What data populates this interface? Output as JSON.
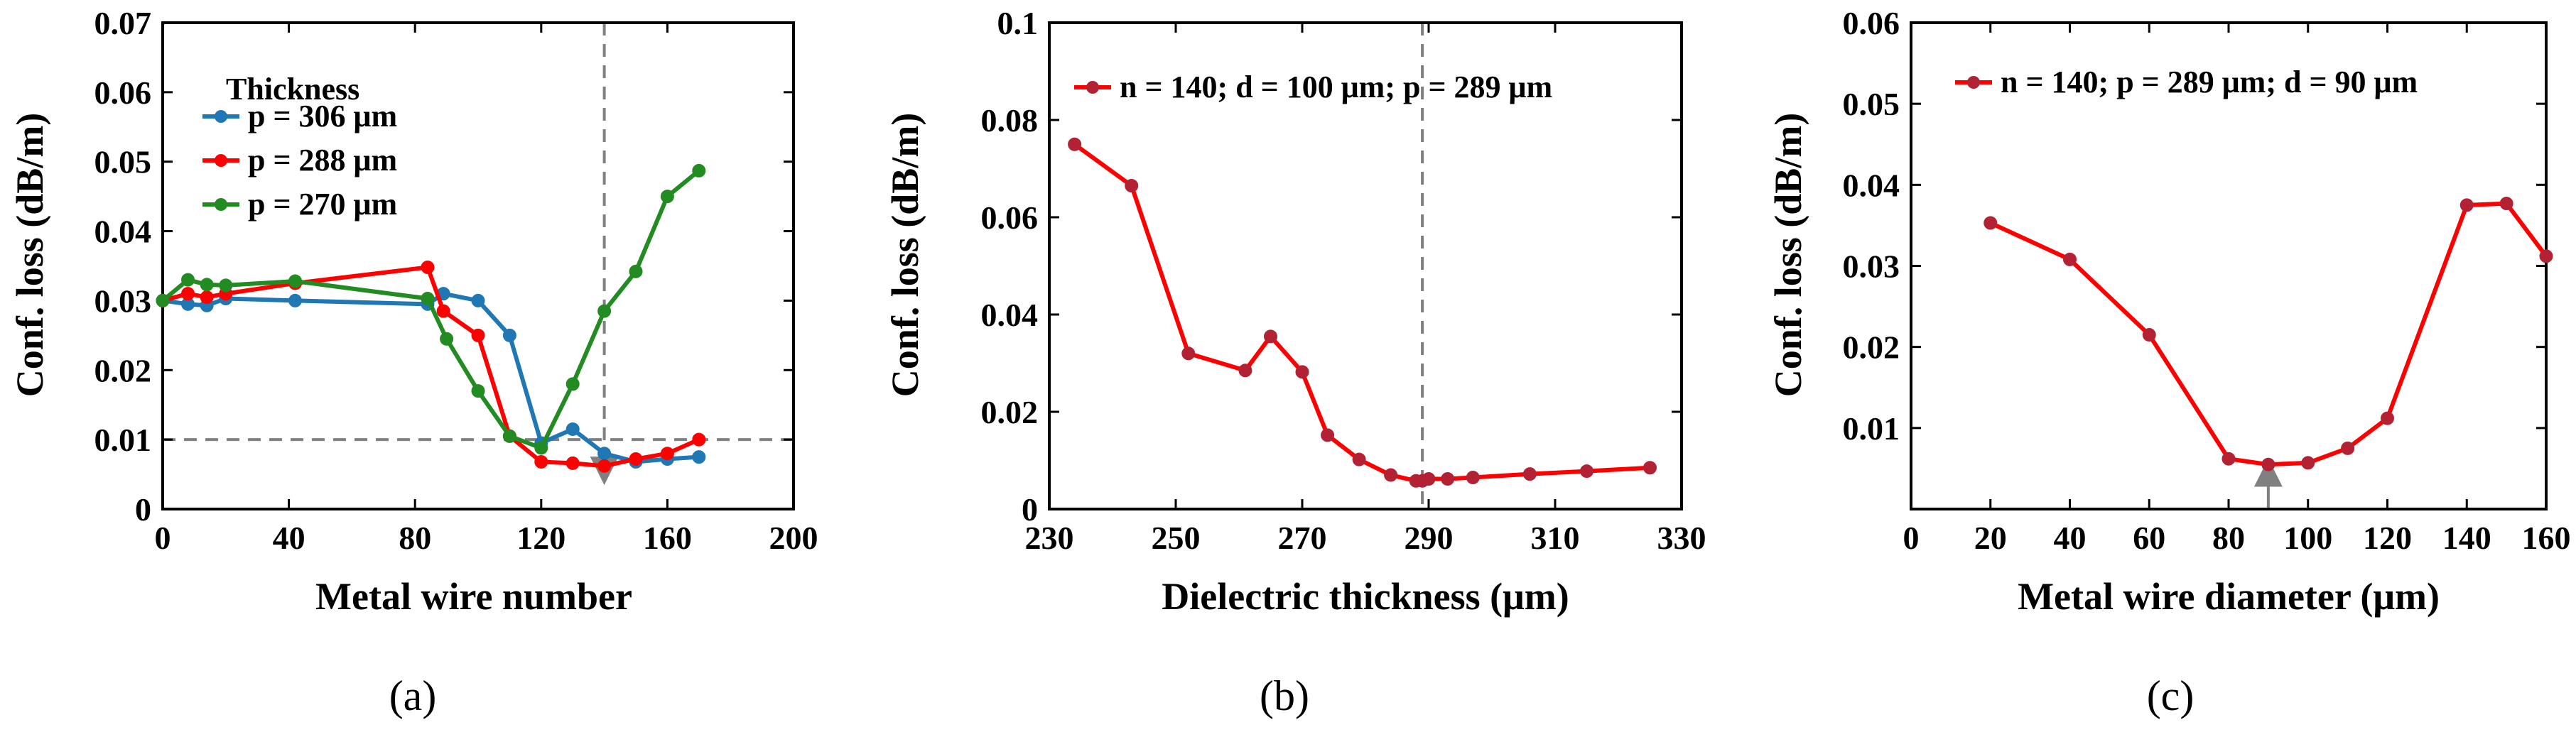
{
  "chart_data": [
    {
      "type": "line",
      "panel_label": "(a)",
      "xlabel": "Metal wire number",
      "ylabel": "Conf. loss (dB/m)",
      "xlim": [
        0,
        200
      ],
      "ylim": [
        0,
        0.07
      ],
      "xticks": [
        "0",
        "40",
        "80",
        "120",
        "160",
        "200"
      ],
      "yticks": [
        "0",
        "0.01",
        "0.02",
        "0.03",
        "0.04",
        "0.05",
        "0.06",
        "0.07"
      ],
      "legend_title": "Thickness",
      "legend_position": "top-left",
      "series": [
        {
          "name": "p = 306 μm",
          "color": "#1f77b4",
          "x": [
            0,
            8,
            14,
            20,
            42,
            84,
            89,
            100,
            110,
            120,
            130,
            140,
            150,
            160,
            170
          ],
          "y": [
            0.03,
            0.0295,
            0.0293,
            0.0303,
            0.03,
            0.0295,
            0.031,
            0.03,
            0.025,
            0.0095,
            0.0115,
            0.008,
            0.0068,
            0.0072,
            0.0075
          ]
        },
        {
          "name": "p = 288 μm",
          "color": "#ff0000",
          "x": [
            0,
            8,
            14,
            20,
            42,
            84,
            89,
            100,
            110,
            120,
            130,
            140,
            150,
            160,
            170
          ],
          "y": [
            0.03,
            0.031,
            0.0305,
            0.031,
            0.0325,
            0.0348,
            0.0285,
            0.025,
            0.0105,
            0.0068,
            0.0066,
            0.0062,
            0.0072,
            0.008,
            0.01
          ]
        },
        {
          "name": "p = 270 μm",
          "color": "#228b22",
          "x": [
            0,
            8,
            14,
            20,
            42,
            84,
            90,
            100,
            110,
            120,
            130,
            140,
            150,
            160,
            170
          ],
          "y": [
            0.03,
            0.033,
            0.0323,
            0.0322,
            0.0328,
            0.0303,
            0.0245,
            0.017,
            0.0105,
            0.0088,
            0.018,
            0.0285,
            0.0342,
            0.045,
            0.0487
          ]
        }
      ],
      "reference_lines": {
        "horizontal_y": 0.01,
        "vertical_x": 140
      }
    },
    {
      "type": "line",
      "panel_label": "(b)",
      "xlabel": "Dielectric thickness (μm)",
      "ylabel": "Conf. loss (dB/m)",
      "xlim": [
        230,
        330
      ],
      "ylim": [
        0,
        0.1
      ],
      "xticks": [
        "230",
        "250",
        "270",
        "290",
        "310",
        "330"
      ],
      "yticks": [
        "0",
        "0.02",
        "0.04",
        "0.06",
        "0.08",
        "0.1"
      ],
      "legend_position": "top-right",
      "series": [
        {
          "name": "n = 140; d = 100 μm; p = 289 μm",
          "color": "#ff0000",
          "x": [
            234,
            243,
            252,
            261,
            265,
            270,
            274,
            279,
            284,
            288,
            289,
            290,
            293,
            297,
            306,
            315,
            325
          ],
          "y": [
            0.075,
            0.0665,
            0.032,
            0.0285,
            0.0355,
            0.0282,
            0.0152,
            0.0102,
            0.007,
            0.0058,
            0.0058,
            0.0062,
            0.0062,
            0.0065,
            0.0072,
            0.0078,
            0.0085
          ]
        }
      ],
      "reference_lines": {
        "vertical_x": 289
      }
    },
    {
      "type": "line",
      "panel_label": "(c)",
      "xlabel": "Metal wire diameter (μm)",
      "ylabel": "Conf. loss (dB/m)",
      "xlim": [
        0,
        160
      ],
      "ylim": [
        0,
        0.06
      ],
      "xticks": [
        "0",
        "20",
        "40",
        "60",
        "80",
        "100",
        "120",
        "140",
        "160"
      ],
      "yticks": [
        "0.01",
        "0.02",
        "0.03",
        "0.04",
        "0.05",
        "0.06"
      ],
      "legend_position": "top",
      "series": [
        {
          "name": "n = 140; p = 289 μm; d = 90 μm",
          "color": "#ff0000",
          "x": [
            20,
            40,
            60,
            80,
            90,
            100,
            110,
            120,
            140,
            150,
            160
          ],
          "y": [
            0.0353,
            0.0308,
            0.0215,
            0.0062,
            0.0055,
            0.0057,
            0.0075,
            0.0112,
            0.0375,
            0.0377,
            0.0312
          ]
        }
      ],
      "reference_lines": {
        "arrow_x": 90
      }
    }
  ],
  "colors": {
    "marker_fill": "#b22234",
    "ref_line": "#808080"
  }
}
